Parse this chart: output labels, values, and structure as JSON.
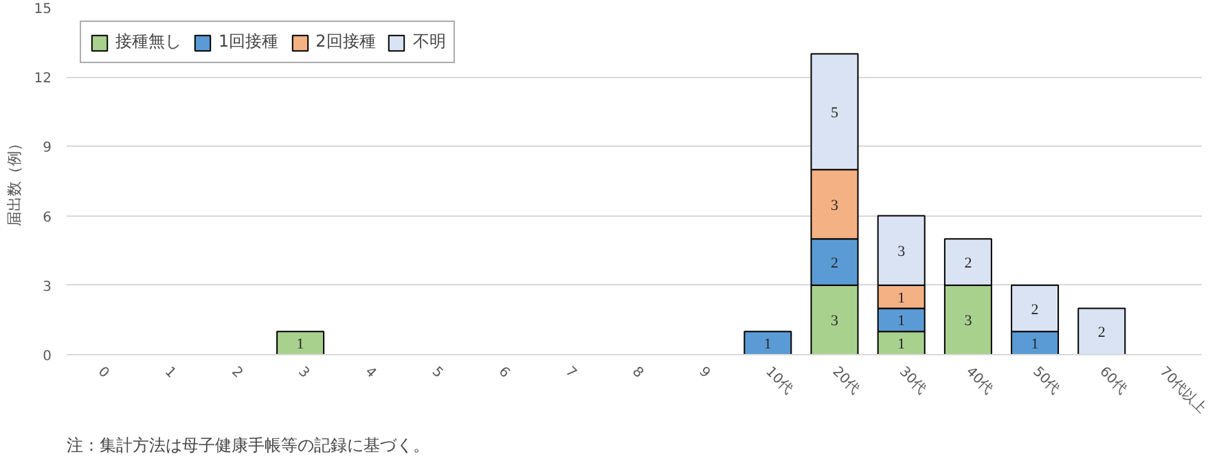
{
  "chart_data": {
    "type": "bar",
    "stacked": true,
    "ylabel": "届出数（例）",
    "categories": [
      "0",
      "1",
      "2",
      "3",
      "4",
      "5",
      "6",
      "7",
      "8",
      "9",
      "10代",
      "20代",
      "30代",
      "40代",
      "50代",
      "60代",
      "70代以上"
    ],
    "series": [
      {
        "name": "接種無し",
        "color": "#a9d18e",
        "values": [
          null,
          null,
          null,
          1,
          null,
          null,
          null,
          null,
          null,
          null,
          null,
          3,
          1,
          3,
          null,
          null,
          null
        ]
      },
      {
        "name": "1回接種",
        "color": "#5b9bd5",
        "values": [
          null,
          null,
          null,
          null,
          null,
          null,
          null,
          null,
          null,
          null,
          1,
          2,
          1,
          null,
          1,
          null,
          null
        ]
      },
      {
        "name": "2回接種",
        "color": "#f4b183",
        "values": [
          null,
          null,
          null,
          null,
          null,
          null,
          null,
          null,
          null,
          null,
          null,
          3,
          1,
          null,
          null,
          null,
          null
        ]
      },
      {
        "name": "不明",
        "color": "#dae3f3",
        "values": [
          null,
          null,
          null,
          null,
          null,
          null,
          null,
          null,
          null,
          null,
          null,
          5,
          3,
          2,
          2,
          2,
          null
        ]
      }
    ],
    "ylim": [
      0,
      15
    ],
    "yticks": [
      0,
      3,
      6,
      9,
      12,
      15
    ],
    "grid": "y",
    "legend": "top left",
    "data_labels": true,
    "annotations": [
      "注：集計方法は母子健康手帳等の記録に基づく。"
    ]
  }
}
